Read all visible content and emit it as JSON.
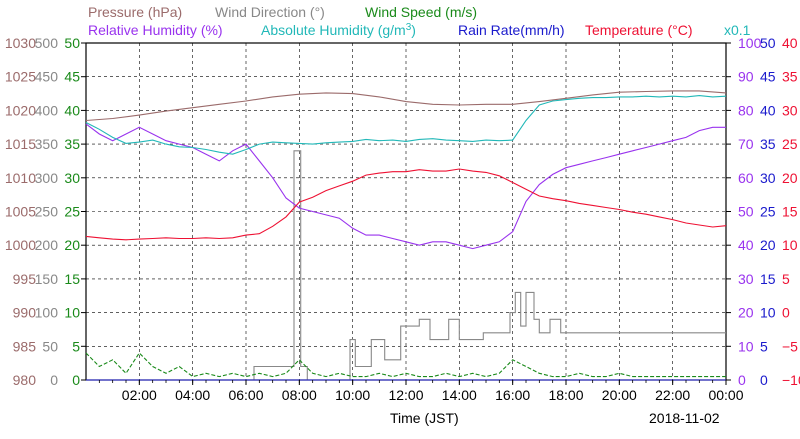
{
  "chart_data": {
    "type": "line",
    "date": "2018-11-02",
    "xlabel": "Time (JST)",
    "x_ticks": [
      "02:00",
      "04:00",
      "06:00",
      "08:00",
      "10:00",
      "12:00",
      "14:00",
      "16:00",
      "18:00",
      "20:00",
      "22:00",
      "00:00"
    ],
    "x_range_hours": [
      0,
      24
    ],
    "legend": [
      {
        "text": "Pressure (hPa)",
        "color": "#9b6b6b"
      },
      {
        "text": "Wind Direction (°)",
        "color": "#888888"
      },
      {
        "text": "Wind Speed (m/s)",
        "color": "#1a8a1a"
      },
      {
        "text": "Relative Humidity (%)",
        "color": "#9933ee"
      },
      {
        "text": "Absolute Humidity (g/m",
        "sup": "3",
        "tail": ")",
        "color": "#22b8b8"
      },
      {
        "text": "Rain Rate(mm/h)",
        "color": "#1a1acc"
      },
      {
        "text": "Temperature (°C)",
        "color": "#ee1133"
      }
    ],
    "x01_label": "x0.1",
    "axes": [
      {
        "name": "Pressure",
        "unit": "hPa",
        "color": "#9b6b6b",
        "side": "left",
        "range": [
          980,
          1030
        ],
        "ticks": [
          "1030",
          "1025",
          "1020",
          "1015",
          "1010",
          "1005",
          "1000",
          "995",
          "990",
          "985",
          "980"
        ]
      },
      {
        "name": "Wind Direction",
        "unit": "°",
        "color": "#888888",
        "side": "left",
        "range": [
          0,
          500
        ],
        "ticks": [
          "500",
          "450",
          "400",
          "350",
          "300",
          "250",
          "200",
          "150",
          "100",
          "50",
          "0"
        ]
      },
      {
        "name": "Wind Speed",
        "unit": "m/s",
        "color": "#1a8a1a",
        "side": "left",
        "range": [
          0,
          50
        ],
        "ticks": [
          "50",
          "45",
          "40",
          "35",
          "30",
          "25",
          "20",
          "15",
          "10",
          "5",
          "0"
        ]
      },
      {
        "name": "Relative Humidity",
        "unit": "%",
        "color": "#9933ee",
        "side": "right",
        "range": [
          0,
          100
        ],
        "ticks": [
          "100",
          "90",
          "80",
          "70",
          "60",
          "50",
          "40",
          "30",
          "20",
          "10",
          "0"
        ]
      },
      {
        "name": "Rain Rate",
        "unit": "mm/h",
        "color": "#1a1acc",
        "side": "right",
        "range": [
          0,
          50
        ],
        "ticks": [
          "50",
          "45",
          "40",
          "35",
          "30",
          "25",
          "20",
          "15",
          "10",
          "5",
          "0"
        ]
      },
      {
        "name": "Temperature",
        "unit": "°C",
        "color": "#ee1133",
        "side": "right",
        "range": [
          -10,
          40
        ],
        "ticks": [
          "40",
          "35",
          "30",
          "25",
          "20",
          "15",
          "10",
          "5",
          "0",
          "−5",
          "−10"
        ]
      }
    ],
    "grid": true,
    "series": [
      {
        "name": "Pressure (hPa)",
        "color": "#9b6b6b",
        "axis": "Pressure",
        "x": [
          0,
          1,
          2,
          3,
          4,
          5,
          6,
          7,
          8,
          9,
          10,
          11,
          12,
          13,
          14,
          15,
          16,
          17,
          18,
          19,
          20,
          21,
          22,
          23,
          24
        ],
        "y": [
          1018.5,
          1018.8,
          1019.3,
          1019.9,
          1020.4,
          1020.9,
          1021.4,
          1022.0,
          1022.4,
          1022.6,
          1022.5,
          1022.0,
          1021.3,
          1020.9,
          1020.8,
          1020.9,
          1020.9,
          1021.3,
          1021.8,
          1022.3,
          1022.7,
          1022.8,
          1022.9,
          1022.9,
          1022.6
        ]
      },
      {
        "name": "Wind Direction (°)",
        "color": "#888888",
        "axis": "Wind Direction",
        "x": [
          0,
          6.3,
          6.3,
          7.8,
          7.8,
          8.05,
          8.05,
          8.3,
          8.3,
          9.9,
          9.9,
          10.1,
          10.1,
          10.7,
          10.7,
          11.2,
          11.2,
          11.8,
          11.8,
          12.5,
          12.5,
          12.9,
          12.9,
          13.6,
          13.6,
          14.0,
          14.0,
          14.4,
          14.4,
          14.9,
          14.9,
          15.9,
          15.9,
          16.1,
          16.1,
          16.3,
          16.3,
          16.5,
          16.5,
          16.8,
          16.8,
          17.0,
          17.0,
          17.4,
          17.4,
          17.8,
          17.8,
          18.3,
          18.3,
          24
        ],
        "y": [
          0,
          0,
          20,
          20,
          340,
          340,
          20,
          20,
          0,
          0,
          60,
          60,
          20,
          20,
          60,
          60,
          30,
          30,
          80,
          80,
          90,
          90,
          60,
          60,
          90,
          90,
          60,
          60,
          60,
          60,
          70,
          70,
          100,
          100,
          130,
          130,
          80,
          80,
          130,
          130,
          90,
          90,
          70,
          70,
          90,
          90,
          70,
          70,
          70,
          70
        ]
      },
      {
        "name": "Wind Speed (m/s)",
        "color": "#1a8a1a",
        "axis": "Wind Speed",
        "x": [
          0,
          0.5,
          1,
          1.5,
          2,
          2.5,
          3,
          3.5,
          4,
          4.5,
          5,
          5.5,
          6,
          6.5,
          7,
          7.5,
          8,
          8.5,
          9,
          9.5,
          10,
          10.5,
          11,
          11.5,
          12,
          12.5,
          13,
          13.5,
          14,
          14.5,
          15,
          15.5,
          16,
          16.5,
          17,
          17.5,
          18,
          18.5,
          19,
          19.5,
          20,
          20.5,
          21,
          21.5,
          22,
          22.5,
          23,
          23.5,
          24
        ],
        "y": [
          4,
          2,
          3,
          1,
          4,
          2,
          1,
          2,
          0.5,
          1,
          0.5,
          1,
          0.5,
          1,
          0.5,
          1,
          3,
          1,
          0.5,
          1,
          0.5,
          0.5,
          1,
          0.5,
          1,
          0.5,
          0.5,
          1,
          0.5,
          1,
          0.5,
          1,
          3,
          2,
          1,
          0.5,
          0.5,
          1,
          0.5,
          0.5,
          1,
          0.5,
          0.5,
          0.5,
          0.5,
          0.5,
          0.5,
          0.5,
          0.5
        ]
      },
      {
        "name": "Relative Humidity (%)",
        "color": "#9933ee",
        "axis": "Relative Humidity",
        "x": [
          0,
          0.5,
          1,
          1.5,
          2,
          2.5,
          3,
          3.5,
          4,
          4.5,
          5,
          5.5,
          6,
          6.5,
          7,
          7.5,
          8,
          8.5,
          9,
          9.5,
          10,
          10.5,
          11,
          11.5,
          12,
          12.5,
          13,
          13.5,
          14,
          14.5,
          15,
          15.5,
          16,
          16.5,
          17,
          17.5,
          18,
          18.5,
          19,
          19.5,
          20,
          20.5,
          21,
          21.5,
          22,
          22.5,
          23,
          23.5,
          24
        ],
        "y": [
          76,
          73,
          71,
          73,
          75,
          73,
          71,
          70,
          69,
          67,
          65,
          68,
          70,
          65,
          60,
          54,
          51,
          50,
          49,
          48,
          45,
          43,
          43,
          42,
          41,
          40,
          41,
          41,
          40,
          39,
          40,
          41,
          44,
          53,
          58,
          61,
          63,
          64,
          65,
          66,
          67,
          68,
          69,
          70,
          71,
          72,
          74,
          75,
          75
        ]
      },
      {
        "name": "Absolute Humidity (g/m3)",
        "color": "#22b8b8",
        "axis": "Wind Direction",
        "x": [
          0,
          0.5,
          1,
          1.5,
          2,
          2.5,
          3,
          3.5,
          4,
          4.5,
          5,
          5.5,
          6,
          6.5,
          7,
          7.5,
          8,
          8.5,
          9,
          9.5,
          10,
          10.5,
          11,
          11.5,
          12,
          12.5,
          13,
          13.5,
          14,
          14.5,
          15,
          15.5,
          16,
          16.5,
          17,
          17.5,
          18,
          18.5,
          19,
          19.5,
          20,
          20.5,
          21,
          21.5,
          22,
          22.5,
          23,
          23.5,
          24
        ],
        "y": [
          382,
          372,
          360,
          351,
          353,
          356,
          350,
          346,
          345,
          342,
          338,
          335,
          342,
          350,
          353,
          352,
          351,
          350,
          352,
          353,
          354,
          357,
          355,
          356,
          354,
          357,
          358,
          356,
          355,
          354,
          356,
          355,
          356,
          385,
          408,
          414,
          416,
          418,
          419,
          419,
          420,
          420,
          421,
          420,
          421,
          420,
          422,
          420,
          421
        ]
      },
      {
        "name": "Rain Rate(mm/h)",
        "color": "#1a1acc",
        "axis": "Rain Rate",
        "x": [
          0,
          24
        ],
        "y": [
          0,
          0
        ]
      },
      {
        "name": "Temperature (°C)",
        "color": "#ee1133",
        "axis": "Temperature",
        "x": [
          0,
          0.5,
          1,
          1.5,
          2,
          2.5,
          3,
          3.5,
          4,
          4.5,
          5,
          5.5,
          6,
          6.5,
          7,
          7.5,
          8,
          8.5,
          9,
          9.5,
          10,
          10.5,
          11,
          11.5,
          12,
          12.5,
          13,
          13.5,
          14,
          14.5,
          15,
          15.5,
          16,
          16.5,
          17,
          17.5,
          18,
          18.5,
          19,
          19.5,
          20,
          20.5,
          21,
          21.5,
          22,
          22.5,
          23,
          23.5,
          24
        ],
        "y": [
          11.3,
          11.1,
          10.9,
          10.8,
          10.9,
          11.0,
          11.1,
          11.0,
          11.0,
          11.1,
          11.0,
          11.1,
          11.5,
          11.7,
          12.8,
          14.2,
          16.4,
          17.1,
          18.1,
          18.8,
          19.5,
          20.4,
          20.7,
          20.9,
          20.9,
          21.2,
          21.0,
          21.0,
          21.3,
          21.0,
          20.8,
          20.3,
          19.3,
          18.3,
          17.3,
          16.9,
          16.6,
          16.2,
          15.9,
          15.6,
          15.3,
          14.9,
          14.6,
          14.2,
          13.8,
          13.3,
          13.0,
          12.7,
          12.9
        ]
      }
    ]
  }
}
